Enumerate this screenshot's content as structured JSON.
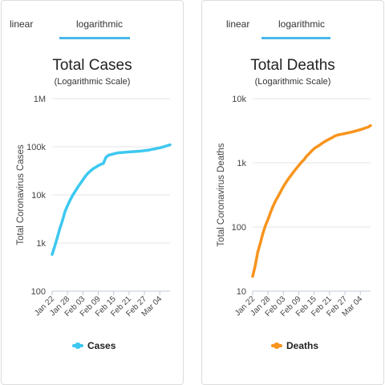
{
  "panels": [
    {
      "tabs": [
        "linear",
        "logarithmic"
      ],
      "active_tab": "logarithmic",
      "legend_label": "Cases",
      "color": "#3cc8f0"
    },
    {
      "tabs": [
        "linear",
        "logarithmic"
      ],
      "active_tab": "logarithmic",
      "legend_label": "Deaths",
      "color": "#f7941d"
    }
  ],
  "chart_data": [
    {
      "type": "line",
      "title": "Total Cases",
      "subtitle": "(Logarithmic Scale)",
      "ylabel": "Total Coronavirus Cases",
      "xlabel": "",
      "y_scale": "log",
      "ylim": [
        100,
        1000000
      ],
      "y_ticks": [
        100,
        1000,
        10000,
        100000,
        1000000
      ],
      "y_tick_labels": [
        "100",
        "1k",
        "10k",
        "100k",
        "1M"
      ],
      "x_tick_labels": [
        "Jan 22",
        "Jan 28",
        "Feb 03",
        "Feb 09",
        "Feb 15",
        "Feb 21",
        "Feb 27",
        "Mar 04"
      ],
      "x_tick_days": [
        0,
        6,
        12,
        18,
        24,
        30,
        36,
        42
      ],
      "x_range_days": [
        0,
        46
      ],
      "grid": true,
      "legend_position": "bottom",
      "series": [
        {
          "name": "Cases",
          "x_days": [
            0,
            1,
            2,
            3,
            4,
            5,
            6,
            7,
            8,
            9,
            10,
            11,
            12,
            13,
            14,
            15,
            16,
            17,
            18,
            19,
            20,
            21,
            22,
            23,
            24,
            25,
            26,
            27,
            28,
            29,
            30,
            31,
            32,
            33,
            34,
            35,
            36,
            37,
            38,
            39,
            40,
            41,
            42,
            43,
            44,
            45,
            46
          ],
          "values": [
            580,
            850,
            1300,
            2000,
            2900,
            4500,
            6000,
            7800,
            9800,
            11900,
            14500,
            17300,
            20600,
            24500,
            28300,
            31500,
            34900,
            37600,
            40600,
            43100,
            45200,
            60400,
            66900,
            69000,
            71300,
            73300,
            75200,
            75700,
            76800,
            77300,
            78100,
            78600,
            79400,
            80100,
            81000,
            82000,
            83100,
            84200,
            86000,
            88400,
            90300,
            92900,
            95300,
            98200,
            101800,
            105900,
            110000
          ]
        }
      ]
    },
    {
      "type": "line",
      "title": "Total Deaths",
      "subtitle": "(Logarithmic Scale)",
      "ylabel": "Total Coronavirus Deaths",
      "xlabel": "",
      "y_scale": "log",
      "ylim": [
        10,
        10000
      ],
      "y_ticks": [
        10,
        100,
        1000,
        10000
      ],
      "y_tick_labels": [
        "10",
        "100",
        "1k",
        "10k"
      ],
      "x_tick_labels": [
        "Jan 22",
        "Jan 28",
        "Feb 03",
        "Feb 09",
        "Feb 15",
        "Feb 21",
        "Feb 27",
        "Mar 04"
      ],
      "x_tick_days": [
        0,
        6,
        12,
        18,
        24,
        30,
        36,
        42
      ],
      "x_range_days": [
        0,
        46
      ],
      "grid": true,
      "legend_position": "bottom",
      "series": [
        {
          "name": "Deaths",
          "x_days": [
            0,
            1,
            2,
            3,
            4,
            5,
            6,
            7,
            8,
            9,
            10,
            11,
            12,
            13,
            14,
            15,
            16,
            17,
            18,
            19,
            20,
            21,
            22,
            23,
            24,
            25,
            26,
            27,
            28,
            29,
            30,
            31,
            32,
            33,
            34,
            35,
            36,
            37,
            38,
            39,
            40,
            41,
            42,
            43,
            44,
            45,
            46
          ],
          "values": [
            17,
            25,
            41,
            56,
            80,
            106,
            132,
            170,
            213,
            259,
            304,
            362,
            426,
            492,
            565,
            638,
            724,
            813,
            910,
            1018,
            1115,
            1261,
            1383,
            1526,
            1669,
            1775,
            1873,
            2009,
            2126,
            2247,
            2360,
            2460,
            2618,
            2699,
            2763,
            2800,
            2858,
            2923,
            2977,
            3050,
            3117,
            3202,
            3285,
            3387,
            3494,
            3599,
            3800
          ]
        }
      ]
    }
  ]
}
